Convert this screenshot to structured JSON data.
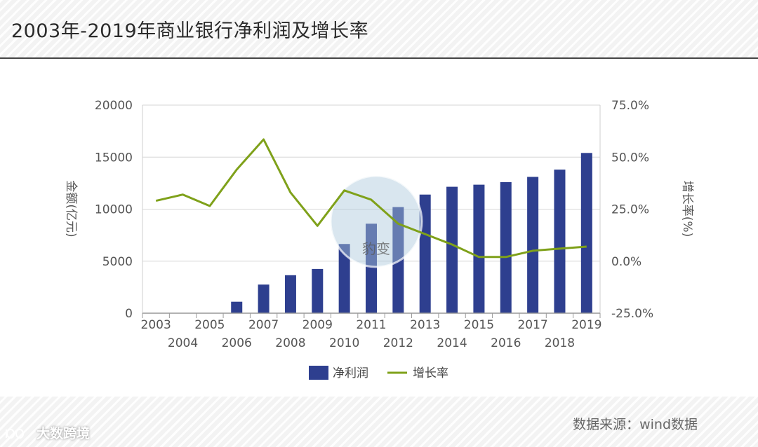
{
  "header": {
    "title": "2003年-2019年商业银行净利润及增长率"
  },
  "chart_data": {
    "type": "bar",
    "categories": [
      "2003",
      "2004",
      "2005",
      "2006",
      "2007",
      "2008",
      "2009",
      "2010",
      "2011",
      "2012",
      "2013",
      "2014",
      "2015",
      "2016",
      "2017",
      "2018",
      "2019"
    ],
    "series": [
      {
        "name": "净利润",
        "type": "bar",
        "axis": "left",
        "color": "#2e3f8f",
        "values": [
          0,
          0,
          0,
          1100,
          2750,
          3650,
          4250,
          6650,
          8600,
          10200,
          11400,
          12150,
          12350,
          12600,
          13100,
          13800,
          15400
        ]
      },
      {
        "name": "增长率",
        "type": "line",
        "axis": "right",
        "color": "#7fa11a",
        "values": [
          29.0,
          32.0,
          26.5,
          44.0,
          58.5,
          33.0,
          17.0,
          34.0,
          29.5,
          18.0,
          13.0,
          8.0,
          2.0,
          2.0,
          5.0,
          6.0,
          7.0
        ]
      }
    ],
    "ylabel": "金额(亿元)",
    "y2label": "增长率(%)",
    "ylim": [
      0,
      20000
    ],
    "yticks": [
      "0",
      "5000",
      "10000",
      "15000",
      "20000"
    ],
    "y2lim": [
      -25,
      75
    ],
    "y2ticks": [
      "-25.0%",
      "0.0%",
      "25.0%",
      "50.0%",
      "75.0%"
    ],
    "grid": true,
    "legend_position": "bottom-center"
  },
  "watermark": {
    "text": "豹变"
  },
  "source": {
    "text": "数据来源：wind数据"
  },
  "brand": {
    "text": "大数跨境"
  }
}
